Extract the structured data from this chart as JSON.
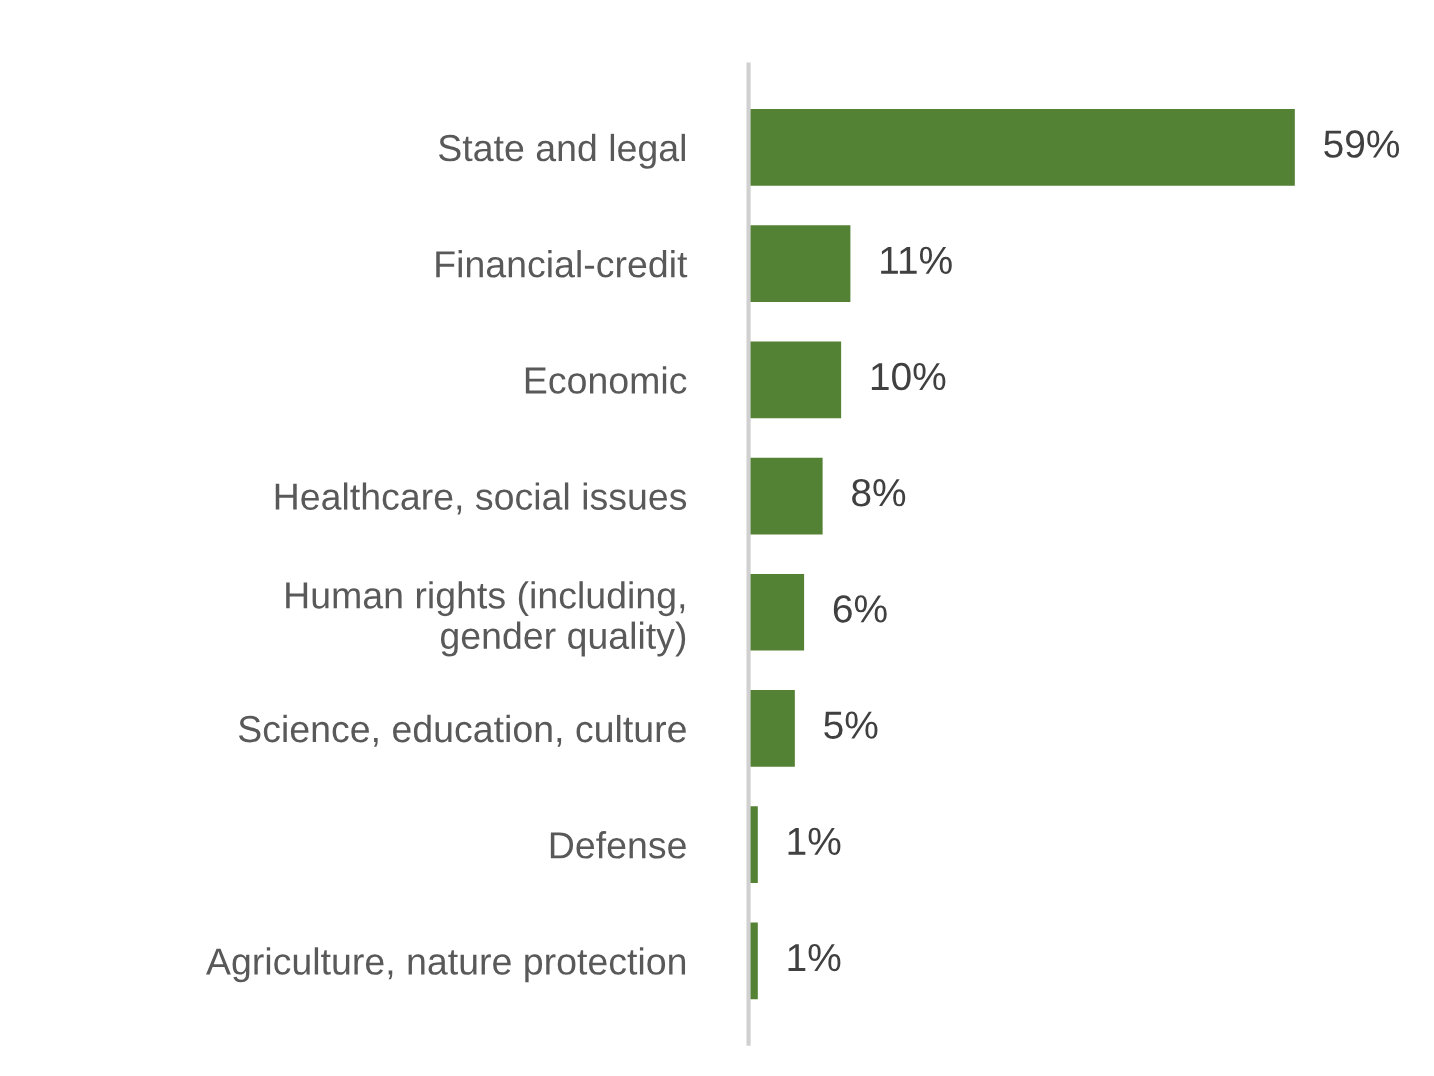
{
  "chart_data": {
    "type": "bar",
    "orientation": "horizontal",
    "categories": [
      "State and legal",
      "Financial-credit",
      "Economic",
      "Healthcare, social issues",
      "Human rights (including,\ngender quality)",
      "Science, education, culture",
      "Defense",
      "Agriculture, nature protection"
    ],
    "values": [
      59,
      11,
      10,
      8,
      6,
      5,
      1,
      1
    ],
    "value_labels": [
      "59%",
      "11%",
      "10%",
      "8%",
      "6%",
      "5%",
      "1%",
      "1%"
    ],
    "color": "#548235",
    "grid": false,
    "legend": false
  }
}
